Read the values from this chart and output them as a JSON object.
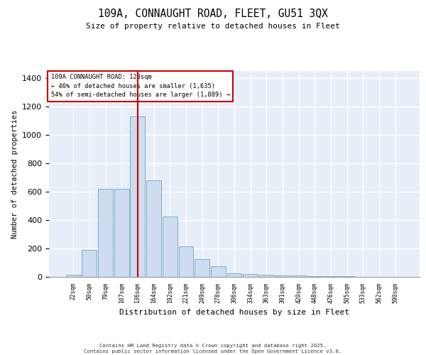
{
  "title1": "109A, CONNAUGHT ROAD, FLEET, GU51 3QX",
  "title2": "Size of property relative to detached houses in Fleet",
  "xlabel": "Distribution of detached houses by size in Fleet",
  "ylabel": "Number of detached properties",
  "bar_labels": [
    "22sqm",
    "50sqm",
    "79sqm",
    "107sqm",
    "136sqm",
    "164sqm",
    "192sqm",
    "221sqm",
    "249sqm",
    "278sqm",
    "306sqm",
    "334sqm",
    "363sqm",
    "391sqm",
    "420sqm",
    "448sqm",
    "476sqm",
    "505sqm",
    "533sqm",
    "562sqm",
    "590sqm"
  ],
  "bar_heights": [
    15,
    190,
    620,
    620,
    1130,
    680,
    425,
    215,
    125,
    75,
    25,
    20,
    15,
    10,
    10,
    5,
    5,
    3,
    2,
    2,
    2
  ],
  "bar_color": "#cddcee",
  "bar_edge_color": "#7aaece",
  "background_color": "#e8eef8",
  "grid_color": "#ffffff",
  "annotation_title": "109A CONNAUGHT ROAD: 129sqm",
  "annotation_line2": "← 46% of detached houses are smaller (1,635)",
  "annotation_line3": "54% of semi-detached houses are larger (1,889) →",
  "annotation_box_color": "#ffffff",
  "annotation_box_edge": "#cc0000",
  "red_line_color": "#cc0000",
  "red_line_index": 4,
  "footer1": "Contains HM Land Registry data © Crown copyright and database right 2025.",
  "footer2": "Contains public sector information licensed under the Open Government Licence v3.0.",
  "ylim": [
    0,
    1450
  ],
  "yticks": [
    0,
    200,
    400,
    600,
    800,
    1000,
    1200,
    1400
  ]
}
